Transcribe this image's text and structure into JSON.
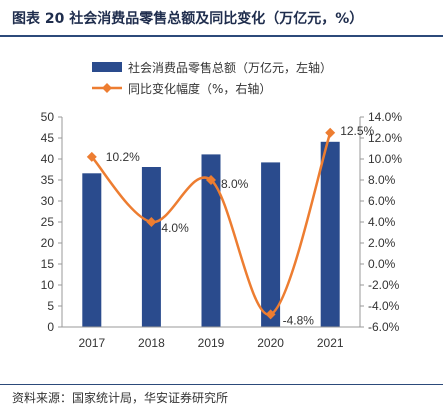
{
  "header": {
    "title": "图表 20 社会消费品零售总额及同比变化（万亿元，%）"
  },
  "footer": {
    "source": "资料来源：国家统计局，华安证券研究所"
  },
  "colors": {
    "bar": "#2a4b8d",
    "line": "#ed7d31",
    "rule": "#2c4a7a"
  },
  "chart_data": {
    "type": "bar",
    "categories": [
      "2017",
      "2018",
      "2019",
      "2020",
      "2021"
    ],
    "series": [
      {
        "name": "社会消费品零售总额（万亿元，左轴）",
        "type": "bar",
        "axis": "left",
        "values": [
          36.6,
          38.1,
          41.1,
          39.2,
          44.1
        ]
      },
      {
        "name": "同比变化幅度（%，右轴）",
        "type": "line",
        "axis": "right",
        "values": [
          10.2,
          4.0,
          8.0,
          -4.8,
          12.5
        ],
        "labels": [
          "10.2%",
          "4.0%",
          "8.0%",
          "-4.8%",
          "12.5%"
        ]
      }
    ],
    "y_left": {
      "lim": [
        0,
        50
      ],
      "ticks": [
        "0",
        "5",
        "10",
        "15",
        "20",
        "25",
        "30",
        "35",
        "40",
        "45",
        "50"
      ]
    },
    "y_right": {
      "lim": [
        -6,
        14
      ],
      "ticks": [
        "-6.0%",
        "-4.0%",
        "-2.0%",
        "0.0%",
        "2.0%",
        "4.0%",
        "6.0%",
        "8.0%",
        "10.0%",
        "12.0%",
        "14.0%"
      ]
    },
    "grid": false,
    "legend_position": "top"
  }
}
